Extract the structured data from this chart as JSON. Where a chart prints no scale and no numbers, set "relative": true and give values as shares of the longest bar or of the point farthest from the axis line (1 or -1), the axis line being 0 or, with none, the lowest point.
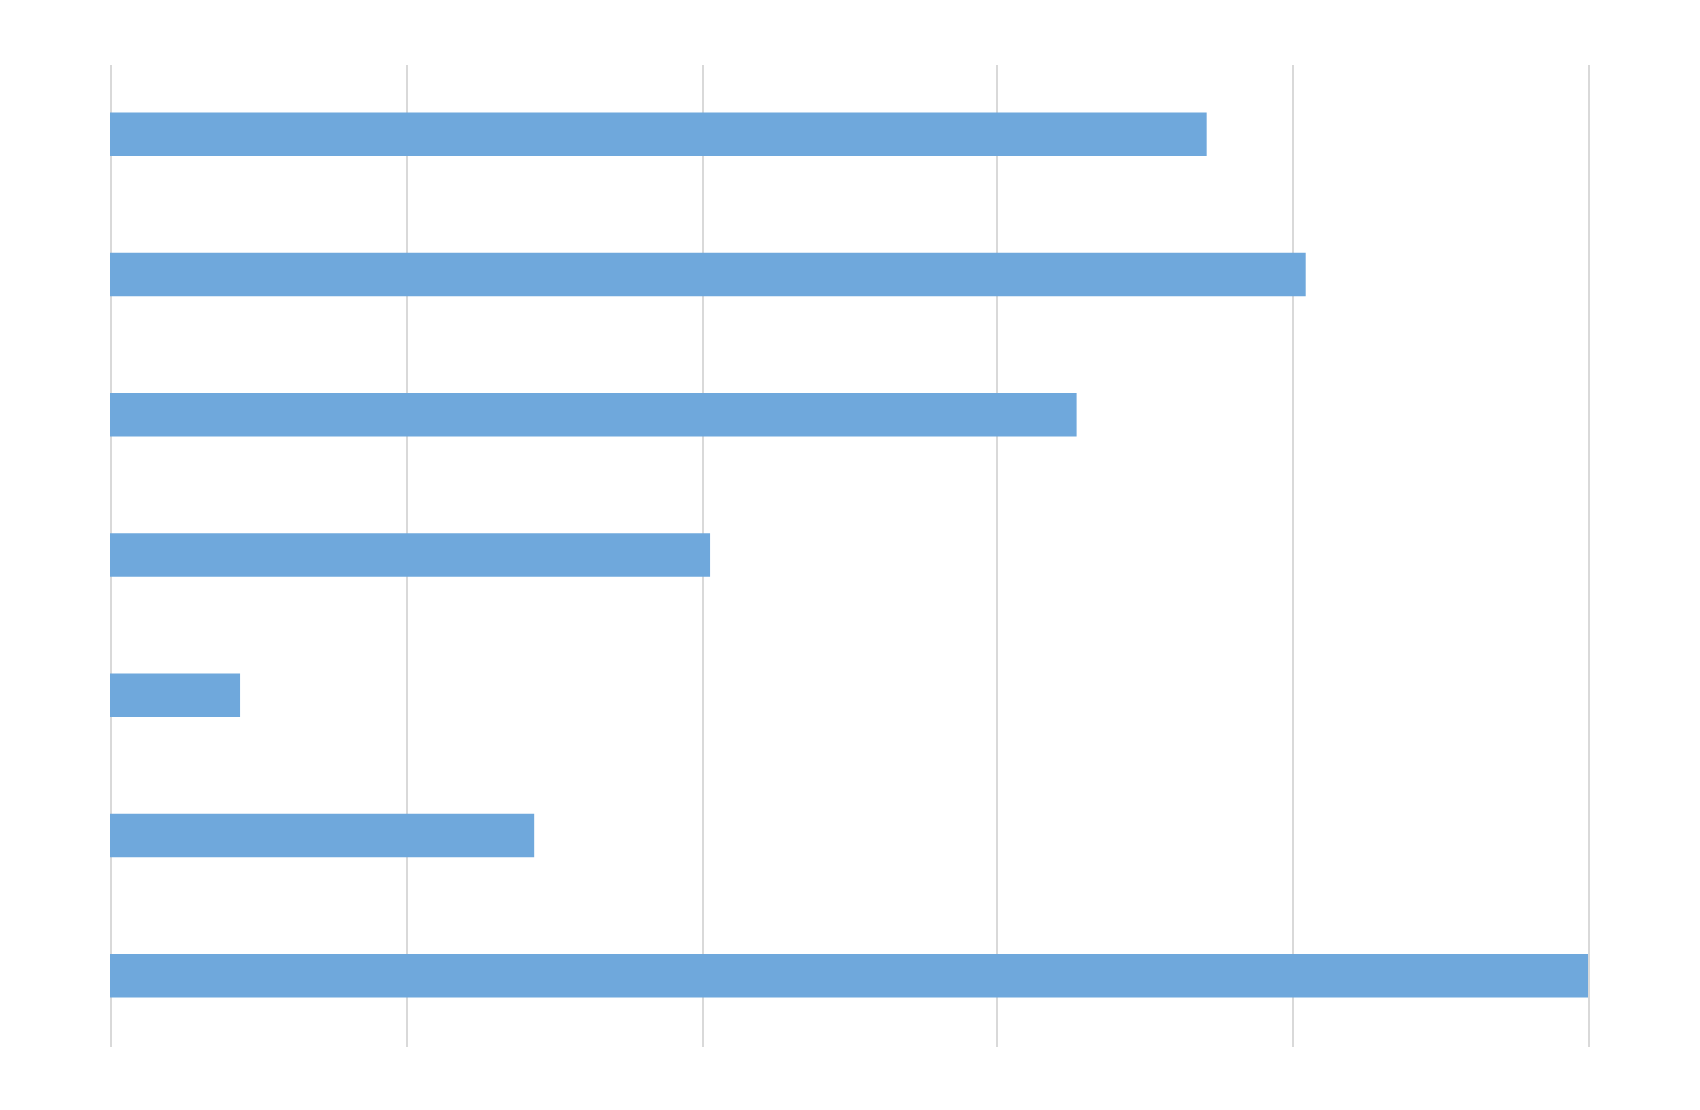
{
  "chart_data": {
    "type": "bar",
    "orientation": "horizontal",
    "relative": true,
    "grid": "x",
    "categories": [
      null,
      null,
      null,
      null,
      null,
      null,
      null
    ],
    "values": [
      0.742,
      0.809,
      0.654,
      0.406,
      0.088,
      0.287,
      1
    ],
    "color": "#6fa8dc"
  }
}
